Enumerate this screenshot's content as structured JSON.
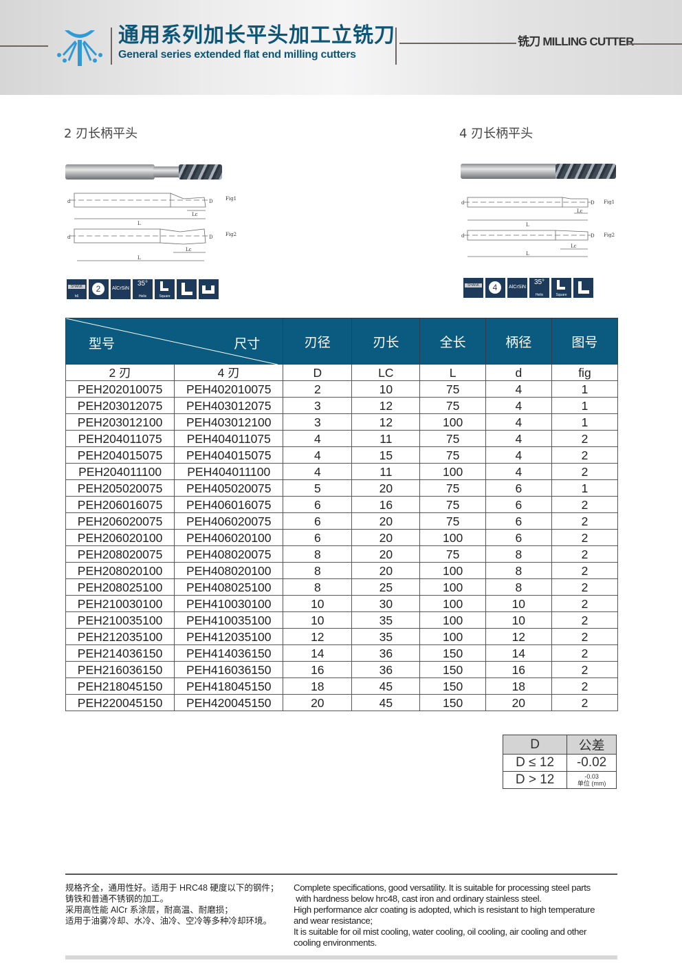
{
  "header": {
    "title_cn": "通用系列加长平头加工立铣刀",
    "title_en": "General series extended flat end milling cutters",
    "category": "铣刀 MILLING CUTTER",
    "brand_color": "#0e5676"
  },
  "left_section": {
    "title": "2 刃长柄平头",
    "fig1": {
      "label": "Fig1",
      "d": "d",
      "D": "D",
      "L": "L",
      "Lc": "Lc"
    },
    "fig2": {
      "label": "Fig2",
      "d": "d",
      "D": "D",
      "L": "L",
      "Lc": "Lc"
    },
    "badges": [
      {
        "icon": "shank-icon",
        "text": "SHANK",
        "sub": "h6"
      },
      {
        "icon": "two-flute-icon",
        "text": "2"
      },
      {
        "icon": "coating-icon",
        "text": "AlCrSiN"
      },
      {
        "icon": "helix-icon",
        "text": "35°",
        "sub": "Helix"
      },
      {
        "icon": "square-end-icon",
        "text": "",
        "sub": "Square"
      },
      {
        "icon": "l-profile-icon",
        "text": ""
      },
      {
        "icon": "u-profile-icon",
        "text": ""
      }
    ]
  },
  "right_section": {
    "title": "4 刃长柄平头",
    "fig1": {
      "label": "Fig1",
      "d": "d",
      "D": "D",
      "L": "L",
      "Lc": "Lc"
    },
    "fig2": {
      "label": "Fig2",
      "d": "d",
      "D": "D",
      "L": "L",
      "Lc": "Lc"
    },
    "badges": [
      {
        "icon": "shank-icon",
        "text": "SHANK"
      },
      {
        "icon": "four-flute-icon",
        "text": "4"
      },
      {
        "icon": "coating-icon",
        "text": "AlCrSiN"
      },
      {
        "icon": "helix-icon",
        "text": "35°",
        "sub": "Helix"
      },
      {
        "icon": "square-end-icon",
        "text": "",
        "sub": "Square"
      },
      {
        "icon": "l-profile-icon",
        "text": ""
      }
    ]
  },
  "spec_table": {
    "header": {
      "model": "型号",
      "size": "尺寸",
      "cols": [
        "刃径",
        "刃长",
        "全长",
        "柄径",
        "图号"
      ]
    },
    "subheader": [
      "2 刃",
      "4 刃",
      "D",
      "LC",
      "L",
      "d",
      "fig"
    ],
    "rows": [
      [
        "PEH202010075",
        "PEH402010075",
        "2",
        "10",
        "75",
        "4",
        "1"
      ],
      [
        "PEH203012075",
        "PEH403012075",
        "3",
        "12",
        "75",
        "4",
        "1"
      ],
      [
        "PEH203012100",
        "PEH403012100",
        "3",
        "12",
        "100",
        "4",
        "1"
      ],
      [
        "PEH204011075",
        "PEH404011075",
        "4",
        "11",
        "75",
        "4",
        "2"
      ],
      [
        "PEH204015075",
        "PEH404015075",
        "4",
        "15",
        "75",
        "4",
        "2"
      ],
      [
        "PEH204011100",
        "PEH404011100",
        "4",
        "11",
        "100",
        "4",
        "2"
      ],
      [
        "PEH205020075",
        "PEH405020075",
        "5",
        "20",
        "75",
        "6",
        "1"
      ],
      [
        "PEH206016075",
        "PEH406016075",
        "6",
        "16",
        "75",
        "6",
        "2"
      ],
      [
        "PEH206020075",
        "PEH406020075",
        "6",
        "20",
        "75",
        "6",
        "2"
      ],
      [
        "PEH206020100",
        "PEH406020100",
        "6",
        "20",
        "100",
        "6",
        "2"
      ],
      [
        "PEH208020075",
        "PEH408020075",
        "8",
        "20",
        "75",
        "8",
        "2"
      ],
      [
        "PEH208020100",
        "PEH408020100",
        "8",
        "20",
        "100",
        "8",
        "2"
      ],
      [
        "PEH208025100",
        "PEH408025100",
        "8",
        "25",
        "100",
        "8",
        "2"
      ],
      [
        "PEH210030100",
        "PEH410030100",
        "10",
        "30",
        "100",
        "10",
        "2"
      ],
      [
        "PEH210035100",
        "PEH410035100",
        "10",
        "35",
        "100",
        "10",
        "2"
      ],
      [
        "PEH212035100",
        "PEH412035100",
        "12",
        "35",
        "100",
        "12",
        "2"
      ],
      [
        "PEH214036150",
        "PEH414036150",
        "14",
        "36",
        "150",
        "14",
        "2"
      ],
      [
        "PEH216036150",
        "PEH416036150",
        "16",
        "36",
        "150",
        "16",
        "2"
      ],
      [
        "PEH218045150",
        "PEH418045150",
        "18",
        "45",
        "150",
        "18",
        "2"
      ],
      [
        "PEH220045150",
        "PEH420045150",
        "20",
        "45",
        "150",
        "20",
        "2"
      ]
    ]
  },
  "tolerance_table": {
    "header": [
      "D",
      "公差"
    ],
    "rows": [
      [
        "D ≤ 12",
        "-0.02"
      ],
      [
        "D > 12",
        "-0.03"
      ]
    ],
    "unit": "单位 (mm)"
  },
  "footer": {
    "cn": [
      "规格齐全，通用性好。适用于 HRC48 硬度以下的钢件；",
      "铸铁和普通不锈钢的加工。",
      "采用高性能 AlCr 系涂层，耐高温、耐磨损；",
      "适用于油雾冷却、水冷、油冷、空冷等多种冷却环境。"
    ],
    "en": [
      "Complete specifications, good versatility. It is suitable for processing steel parts",
      " with hardness below hrc48, cast iron and ordinary stainless steel.",
      "High performance alcr coating is adopted, which is resistant to high temperature",
      "and wear resistance;",
      "It is suitable for oil mist cooling, water cooling, oil cooling, air cooling and other",
      "cooling environments."
    ]
  }
}
